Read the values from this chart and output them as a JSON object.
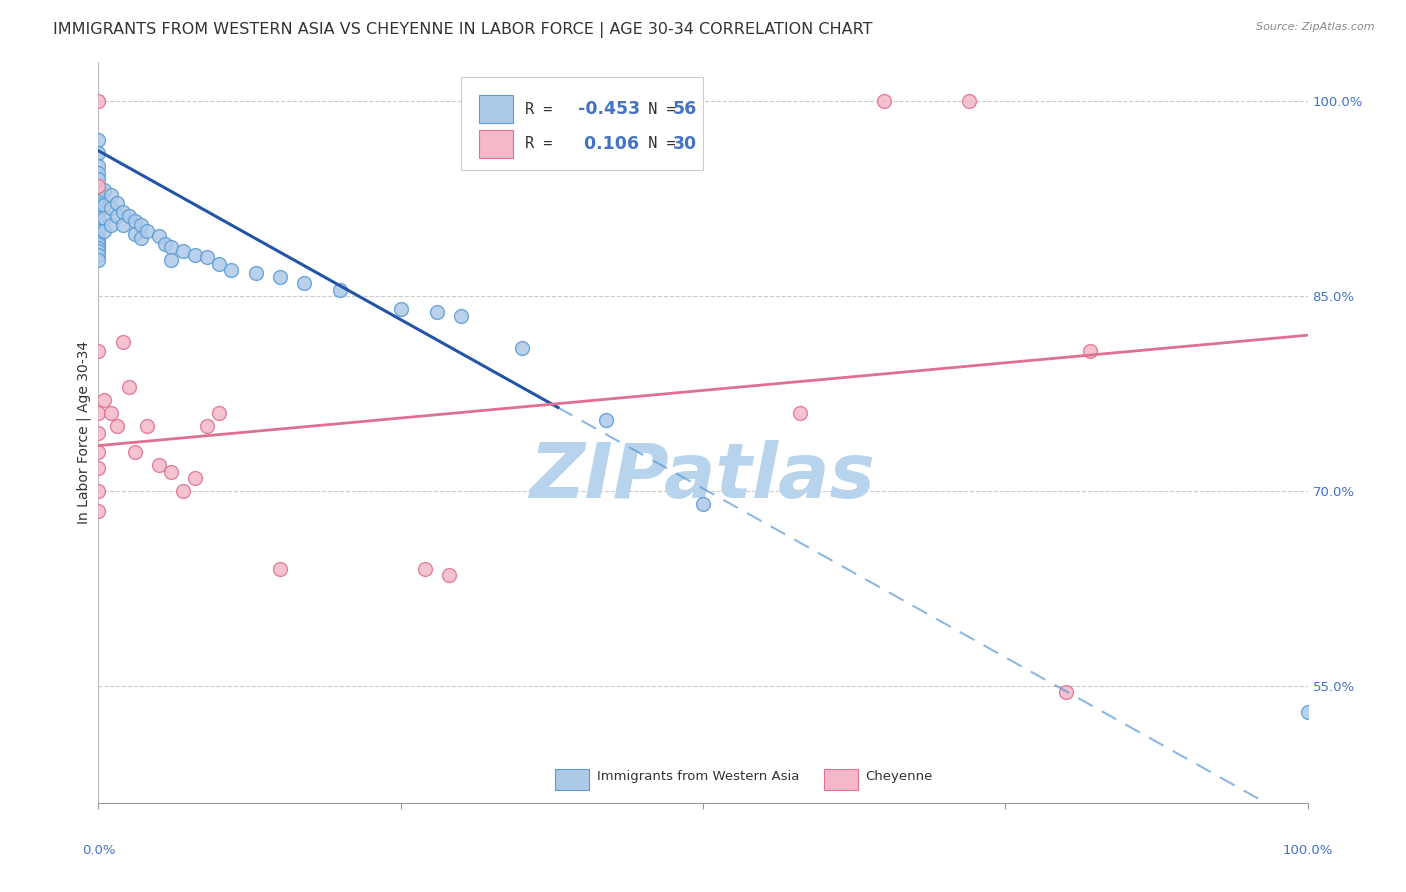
{
  "title": "IMMIGRANTS FROM WESTERN ASIA VS CHEYENNE IN LABOR FORCE | AGE 30-34 CORRELATION CHART",
  "source": "Source: ZipAtlas.com",
  "ylabel": "In Labor Force | Age 30-34",
  "xlim": [
    0.0,
    1.0
  ],
  "ylim": [
    0.46,
    1.03
  ],
  "yticks": [
    0.55,
    0.7,
    0.85,
    1.0
  ],
  "ytick_labels": [
    "55.0%",
    "70.0%",
    "85.0%",
    "100.0%"
  ],
  "blue_R": -0.453,
  "blue_N": 56,
  "pink_R": 0.106,
  "pink_N": 30,
  "blue_color": "#adc9e8",
  "blue_edge_color": "#5b9bd5",
  "pink_color": "#f4b8c8",
  "pink_edge_color": "#e07090",
  "blue_line_color": "#2255aa",
  "pink_line_color": "#e07090",
  "blue_dots": [
    [
      0.0,
      0.97
    ],
    [
      0.0,
      0.96
    ],
    [
      0.0,
      0.95
    ],
    [
      0.0,
      0.945
    ],
    [
      0.0,
      0.94
    ],
    [
      0.0,
      0.932
    ],
    [
      0.0,
      0.925
    ],
    [
      0.0,
      0.92
    ],
    [
      0.0,
      0.915
    ],
    [
      0.0,
      0.91
    ],
    [
      0.0,
      0.905
    ],
    [
      0.0,
      0.9
    ],
    [
      0.0,
      0.895
    ],
    [
      0.0,
      0.892
    ],
    [
      0.0,
      0.89
    ],
    [
      0.0,
      0.887
    ],
    [
      0.0,
      0.885
    ],
    [
      0.0,
      0.882
    ],
    [
      0.0,
      0.878
    ],
    [
      0.005,
      0.932
    ],
    [
      0.005,
      0.92
    ],
    [
      0.005,
      0.91
    ],
    [
      0.005,
      0.9
    ],
    [
      0.01,
      0.928
    ],
    [
      0.01,
      0.918
    ],
    [
      0.01,
      0.905
    ],
    [
      0.015,
      0.922
    ],
    [
      0.015,
      0.912
    ],
    [
      0.02,
      0.915
    ],
    [
      0.02,
      0.905
    ],
    [
      0.025,
      0.912
    ],
    [
      0.03,
      0.908
    ],
    [
      0.03,
      0.898
    ],
    [
      0.035,
      0.905
    ],
    [
      0.035,
      0.895
    ],
    [
      0.04,
      0.9
    ],
    [
      0.05,
      0.896
    ],
    [
      0.055,
      0.89
    ],
    [
      0.06,
      0.888
    ],
    [
      0.06,
      0.878
    ],
    [
      0.07,
      0.885
    ],
    [
      0.08,
      0.882
    ],
    [
      0.09,
      0.88
    ],
    [
      0.1,
      0.875
    ],
    [
      0.11,
      0.87
    ],
    [
      0.13,
      0.868
    ],
    [
      0.15,
      0.865
    ],
    [
      0.17,
      0.86
    ],
    [
      0.2,
      0.855
    ],
    [
      0.25,
      0.84
    ],
    [
      0.28,
      0.838
    ],
    [
      0.3,
      0.835
    ],
    [
      0.35,
      0.81
    ],
    [
      0.42,
      0.755
    ],
    [
      0.5,
      0.69
    ],
    [
      1.0,
      0.53
    ]
  ],
  "pink_dots": [
    [
      0.0,
      1.0
    ],
    [
      0.0,
      0.935
    ],
    [
      0.0,
      0.808
    ],
    [
      0.0,
      0.76
    ],
    [
      0.0,
      0.745
    ],
    [
      0.0,
      0.73
    ],
    [
      0.0,
      0.718
    ],
    [
      0.0,
      0.7
    ],
    [
      0.0,
      0.685
    ],
    [
      0.005,
      0.77
    ],
    [
      0.01,
      0.76
    ],
    [
      0.015,
      0.75
    ],
    [
      0.02,
      0.815
    ],
    [
      0.025,
      0.78
    ],
    [
      0.03,
      0.73
    ],
    [
      0.04,
      0.75
    ],
    [
      0.05,
      0.72
    ],
    [
      0.06,
      0.715
    ],
    [
      0.07,
      0.7
    ],
    [
      0.08,
      0.71
    ],
    [
      0.09,
      0.75
    ],
    [
      0.1,
      0.76
    ],
    [
      0.15,
      0.64
    ],
    [
      0.27,
      0.64
    ],
    [
      0.29,
      0.635
    ],
    [
      0.58,
      0.76
    ],
    [
      0.65,
      1.0
    ],
    [
      0.72,
      1.0
    ],
    [
      0.8,
      0.545
    ],
    [
      0.82,
      0.808
    ]
  ],
  "background_color": "#ffffff",
  "grid_color": "#cccccc",
  "title_fontsize": 11.5,
  "label_fontsize": 10,
  "tick_fontsize": 9.5,
  "marker_size": 100,
  "watermark_text": "ZIPatlas",
  "watermark_color": "#b8d4ed",
  "watermark_fontsize": 55,
  "blue_line_solid_end": 0.38,
  "pink_line_intercept": 0.735,
  "pink_line_slope": 0.085,
  "blue_line_intercept": 0.962,
  "blue_line_slope": -0.52
}
